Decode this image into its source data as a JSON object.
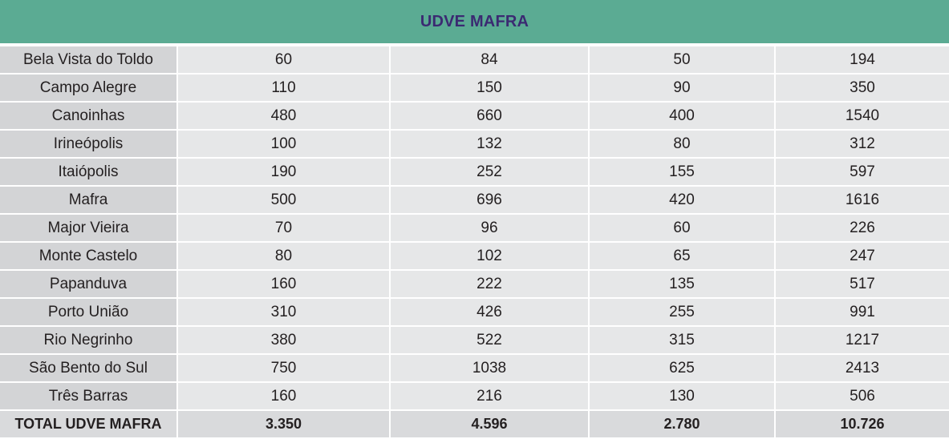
{
  "title": "UDVE MAFRA",
  "rows": [
    {
      "name": "Bela Vista do Toldo",
      "values": [
        "60",
        "84",
        "50",
        "194"
      ]
    },
    {
      "name": "Campo Alegre",
      "values": [
        "110",
        "150",
        "90",
        "350"
      ]
    },
    {
      "name": "Canoinhas",
      "values": [
        "480",
        "660",
        "400",
        "1540"
      ]
    },
    {
      "name": "Irineópolis",
      "values": [
        "100",
        "132",
        "80",
        "312"
      ]
    },
    {
      "name": "Itaiópolis",
      "values": [
        "190",
        "252",
        "155",
        "597"
      ]
    },
    {
      "name": "Mafra",
      "values": [
        "500",
        "696",
        "420",
        "1616"
      ]
    },
    {
      "name": "Major Vieira",
      "values": [
        "70",
        "96",
        "60",
        "226"
      ]
    },
    {
      "name": "Monte Castelo",
      "values": [
        "80",
        "102",
        "65",
        "247"
      ]
    },
    {
      "name": "Papanduva",
      "values": [
        "160",
        "222",
        "135",
        "517"
      ]
    },
    {
      "name": "Porto União",
      "values": [
        "310",
        "426",
        "255",
        "991"
      ]
    },
    {
      "name": "Rio Negrinho",
      "values": [
        "380",
        "522",
        "315",
        "1217"
      ]
    },
    {
      "name": "São Bento do Sul",
      "values": [
        "750",
        "1038",
        "625",
        "2413"
      ]
    },
    {
      "name": "Três Barras",
      "values": [
        "160",
        "216",
        "130",
        "506"
      ]
    }
  ],
  "total": {
    "name": "TOTAL UDVE MAFRA",
    "values": [
      "3.350",
      "4.596",
      "2.780",
      "10.726"
    ]
  }
}
